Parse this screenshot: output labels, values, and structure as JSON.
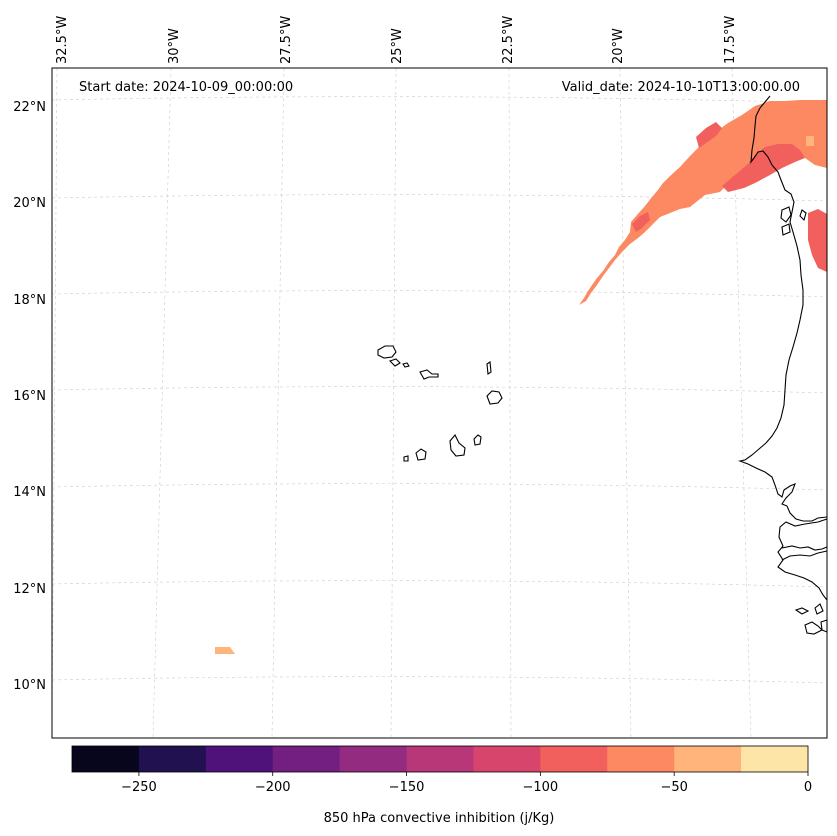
{
  "map": {
    "start_date_label": "Start date: 2024-10-09_00:00:00",
    "valid_date_label": "Valid_date: 2024-10-10T13:00:00.00",
    "lon_labels": [
      "32.5°W",
      "30°W",
      "27.5°W",
      "25°W",
      "22.5°W",
      "20°W",
      "17.5°W"
    ],
    "lat_labels": [
      "22°N",
      "20°N",
      "18°N",
      "16°N",
      "14°N",
      "12°N",
      "10°N"
    ]
  },
  "colorbar": {
    "title": "850 hPa convective inhibition (j/Kg)",
    "tick_labels": [
      "−250",
      "−200",
      "−150",
      "−100",
      "−50",
      "0"
    ],
    "range": [
      -275,
      0
    ],
    "levels": [
      -275,
      -250,
      -225,
      -200,
      -175,
      -150,
      -125,
      -100,
      -75,
      -50,
      -25,
      0
    ],
    "colors": [
      "#07061c",
      "#221150",
      "#4f127b",
      "#721f81",
      "#932b80",
      "#b73779",
      "#d8456c",
      "#f1605d",
      "#fc8961",
      "#feb47b",
      "#fde5a7"
    ]
  },
  "colors": {
    "field_minus_100": "#f1605d",
    "field_minus_75": "#fc8961",
    "field_minus_50": "#feb47b"
  }
}
